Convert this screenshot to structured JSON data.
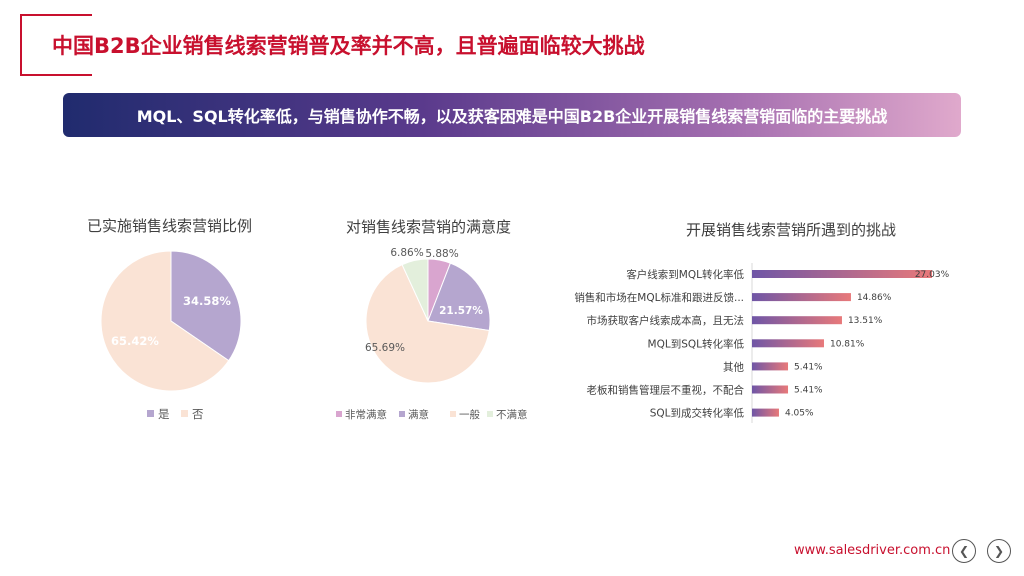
{
  "header": {
    "title": "中国B2B企业销售线索营销普及率并不高，且普遍面临较大挑战",
    "banner": "MQL、SQL转化率低，与销售协作不畅，以及获客困难是中国B2B企业开展销售线索营销面临的主要挑战"
  },
  "footer": {
    "url": "www.salesdriver.com.cn",
    "prev_icon": "chevron-left-icon",
    "next_icon": "chevron-right-icon"
  },
  "colors": {
    "accent": "#c8102e"
  },
  "chart_data": [
    {
      "type": "pie",
      "title": "已实施销售线索营销比例",
      "labels": [
        "是",
        "否"
      ],
      "values": [
        34.58,
        65.42
      ],
      "value_labels": [
        "34.58%",
        "65.42%"
      ],
      "colors": [
        "#b5a6cf",
        "#fae3d5"
      ],
      "legend": "bottom"
    },
    {
      "type": "pie",
      "title": "对销售线索营销的满意度",
      "labels": [
        "非常满意",
        "满意",
        "一般",
        "不满意"
      ],
      "values": [
        5.88,
        21.57,
        65.69,
        6.86
      ],
      "value_labels": [
        "5.88%",
        "21.57%",
        "65.69%",
        "6.86%"
      ],
      "colors": [
        "#d9a5cf",
        "#b5a6cf",
        "#fae3d5",
        "#e3efdc"
      ],
      "legend": "bottom"
    },
    {
      "type": "bar",
      "orientation": "horizontal",
      "title": "开展销售线索营销所遇到的挑战",
      "categories": [
        "客户线索到MQL转化率低",
        "销售和市场在MQL标准和跟进反馈...",
        "市场获取客户线索成本高，且无法",
        "MQL到SQL转化率低",
        "其他",
        "老板和销售管理层不重视，不配合",
        "SQL到成交转化率低"
      ],
      "values": [
        27.03,
        14.86,
        13.51,
        10.81,
        5.41,
        5.41,
        4.05
      ],
      "value_labels": [
        "27.03%",
        "14.86%",
        "13.51%",
        "10.81%",
        "5.41%",
        "5.41%",
        "4.05%"
      ],
      "color_start": "#6f56a6",
      "color_end": "#e8797a"
    }
  ]
}
